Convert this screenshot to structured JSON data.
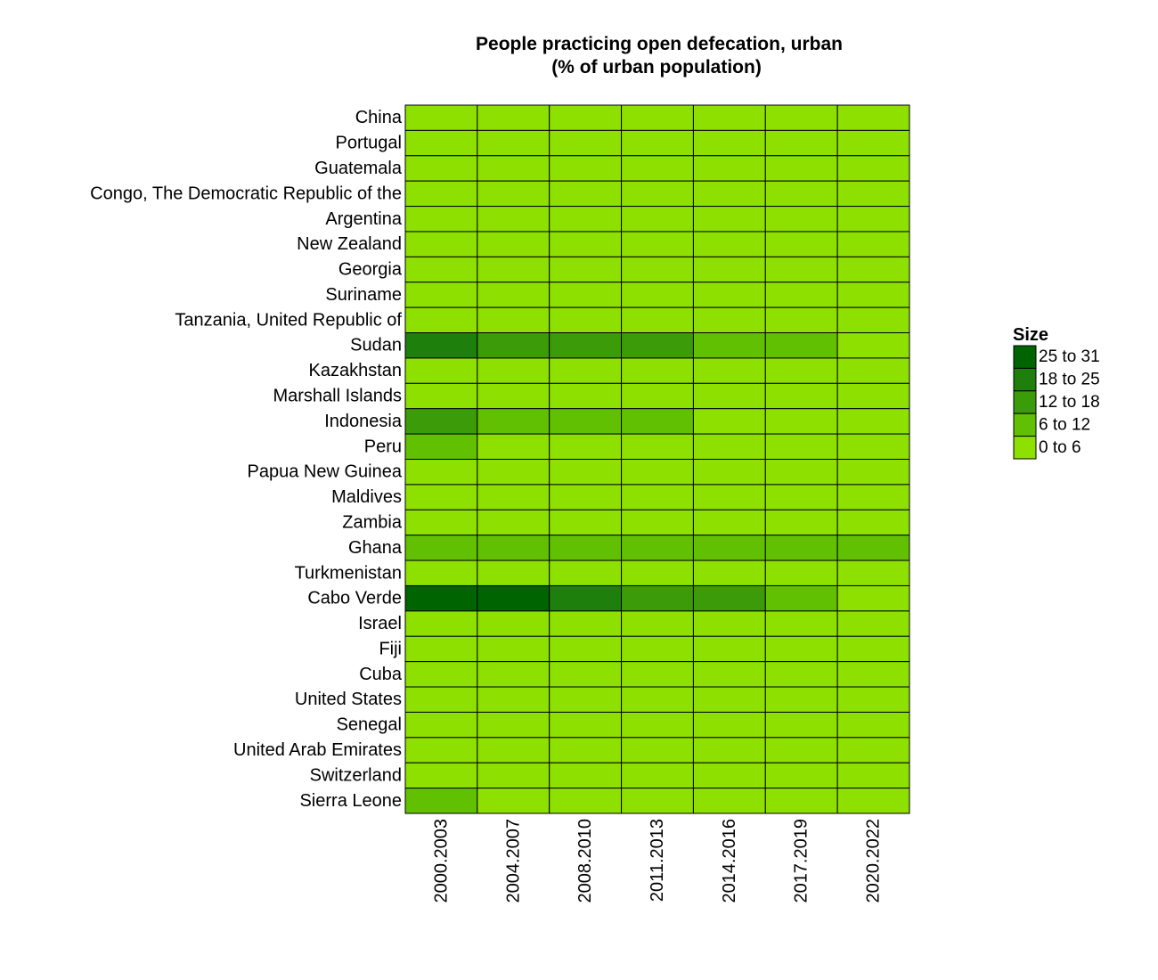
{
  "chart_data": {
    "type": "heatmap",
    "title": [
      "People practicing open defecation, urban",
      "(% of urban population)"
    ],
    "x_categories": [
      "2000.2003",
      "2004.2007",
      "2008.2010",
      "2011.2013",
      "2014.2016",
      "2017.2019",
      "2020.2022"
    ],
    "y_categories": [
      "China",
      "Portugal",
      "Guatemala",
      "Congo, The Democratic Republic of the",
      "Argentina",
      "New Zealand",
      "Georgia",
      "Suriname",
      "Tanzania, United Republic of",
      "Sudan",
      "Kazakhstan",
      "Marshall Islands",
      "Indonesia",
      "Peru",
      "Papua New Guinea",
      "Maldives",
      "Zambia",
      "Ghana",
      "Turkmenistan",
      "Cabo Verde",
      "Israel",
      "Fiji",
      "Cuba",
      "United States",
      "Senegal",
      "United Arab Emirates",
      "Switzerland",
      "Sierra Leone"
    ],
    "values": [
      [
        1,
        1,
        0,
        0,
        0,
        0,
        0
      ],
      [
        0,
        0,
        0,
        0,
        0,
        0,
        0
      ],
      [
        2,
        2,
        1,
        1,
        1,
        1,
        1
      ],
      [
        3,
        2,
        2,
        2,
        2,
        2,
        2
      ],
      [
        0,
        0,
        0,
        0,
        0,
        0,
        0
      ],
      [
        0,
        0,
        0,
        0,
        0,
        0,
        0
      ],
      [
        0,
        0,
        0,
        0,
        0,
        0,
        0
      ],
      [
        1,
        1,
        1,
        1,
        1,
        1,
        1
      ],
      [
        4,
        4,
        3,
        3,
        3,
        3,
        3
      ],
      [
        21,
        15,
        15,
        15,
        10,
        9,
        5
      ],
      [
        0,
        0,
        0,
        0,
        0,
        0,
        0
      ],
      [
        2,
        2,
        2,
        2,
        2,
        2,
        2
      ],
      [
        14,
        10,
        9,
        8,
        5,
        4,
        3
      ],
      [
        7,
        5,
        4,
        3,
        3,
        2,
        2
      ],
      [
        4,
        4,
        4,
        4,
        4,
        4,
        4
      ],
      [
        0,
        0,
        0,
        0,
        0,
        0,
        0
      ],
      [
        3,
        3,
        3,
        3,
        3,
        3,
        3
      ],
      [
        10,
        10,
        10,
        10,
        10,
        10,
        10
      ],
      [
        0,
        0,
        0,
        0,
        0,
        0,
        0
      ],
      [
        29,
        27,
        19,
        15,
        14,
        9,
        5
      ],
      [
        0,
        0,
        0,
        0,
        0,
        0,
        0
      ],
      [
        1,
        1,
        1,
        1,
        1,
        1,
        1
      ],
      [
        1,
        1,
        1,
        1,
        1,
        1,
        1
      ],
      [
        0,
        0,
        0,
        0,
        0,
        0,
        0
      ],
      [
        4,
        4,
        4,
        3,
        3,
        3,
        2
      ],
      [
        0,
        0,
        0,
        0,
        0,
        0,
        0
      ],
      [
        0,
        0,
        0,
        0,
        0,
        0,
        0
      ],
      [
        8,
        5,
        5,
        5,
        5,
        5,
        5
      ]
    ],
    "legend": {
      "title": "Size",
      "placement": "right",
      "bins": [
        {
          "label": "25 to 31",
          "min": 25,
          "max": 31,
          "color": "#006400"
        },
        {
          "label": "18 to 25",
          "min": 18,
          "max": 25,
          "color": "#1e7f0c"
        },
        {
          "label": "12 to 18",
          "min": 12,
          "max": 18,
          "color": "#3c9b09"
        },
        {
          "label": "6 to 12",
          "min": 6,
          "max": 12,
          "color": "#62c002"
        },
        {
          "label": "0 to 6",
          "min": 0,
          "max": 6,
          "color": "#8ee000"
        }
      ]
    },
    "cell_border_color": "#000000"
  }
}
